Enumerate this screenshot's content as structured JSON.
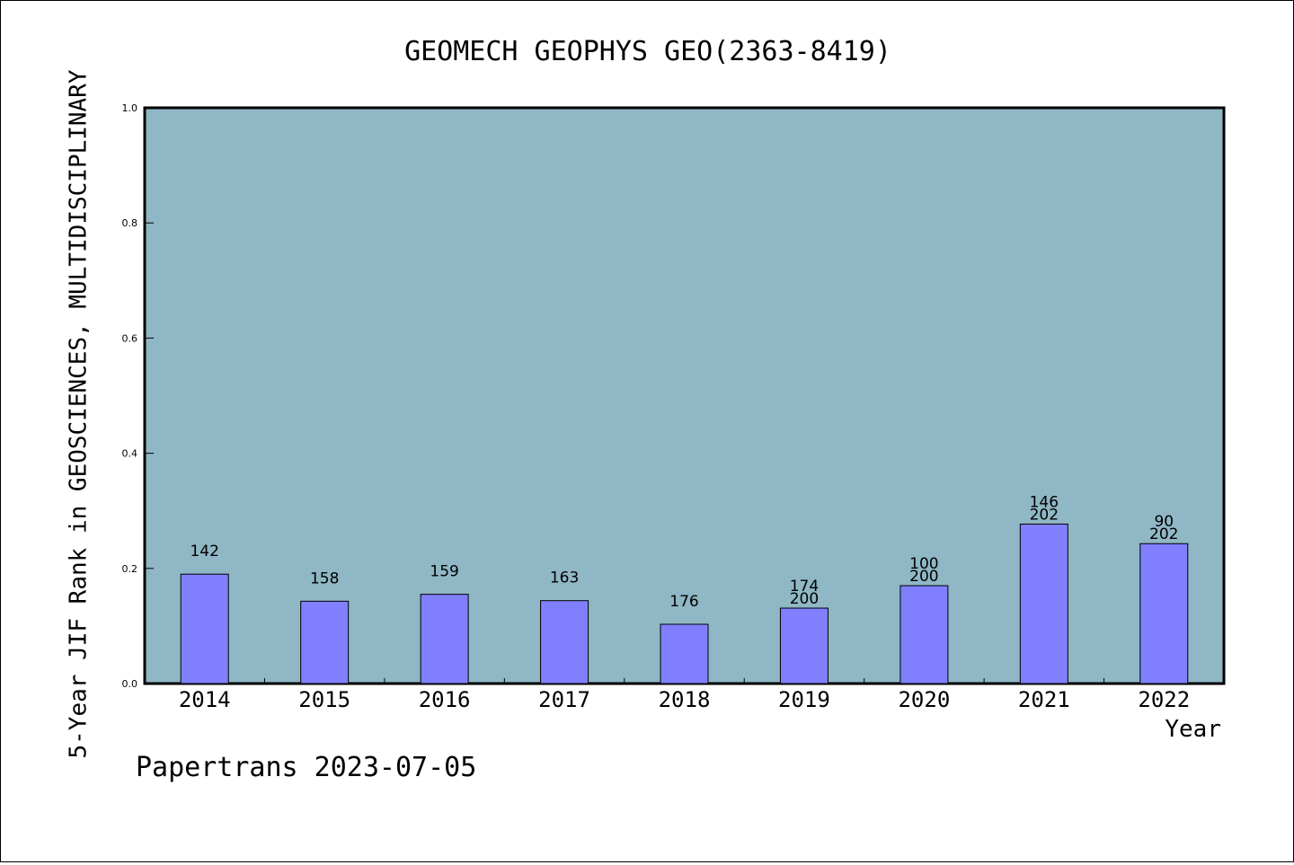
{
  "chart_data": {
    "type": "bar",
    "title": "GEOMECH GEOPHYS GEO(2363-8419)",
    "xlabel": "Year",
    "ylabel": "5-Year JIF Rank in GEOSCIENCES, MULTIDISCIPLINARY",
    "ylim": [
      0,
      1.0
    ],
    "yticks": [
      "0.0",
      "0.2",
      "0.4",
      "0.6",
      "0.8",
      "1.0"
    ],
    "grid": false,
    "categories": [
      "2014",
      "2015",
      "2016",
      "2017",
      "2018",
      "2019",
      "2020",
      "2021",
      "2022"
    ],
    "values": [
      0.19,
      0.143,
      0.155,
      0.144,
      0.103,
      0.131,
      0.17,
      0.277,
      0.243
    ],
    "labels": [
      [
        "142"
      ],
      [
        "158"
      ],
      [
        "159"
      ],
      [
        "163"
      ],
      [
        "176"
      ],
      [
        "174",
        "200"
      ],
      [
        "100",
        "200"
      ],
      [
        "146",
        "202"
      ],
      [
        "90",
        "202"
      ]
    ],
    "bar_color": "#8080ff",
    "plot_background": "#8fb7c5"
  },
  "footer": "Papertrans 2023-07-05"
}
